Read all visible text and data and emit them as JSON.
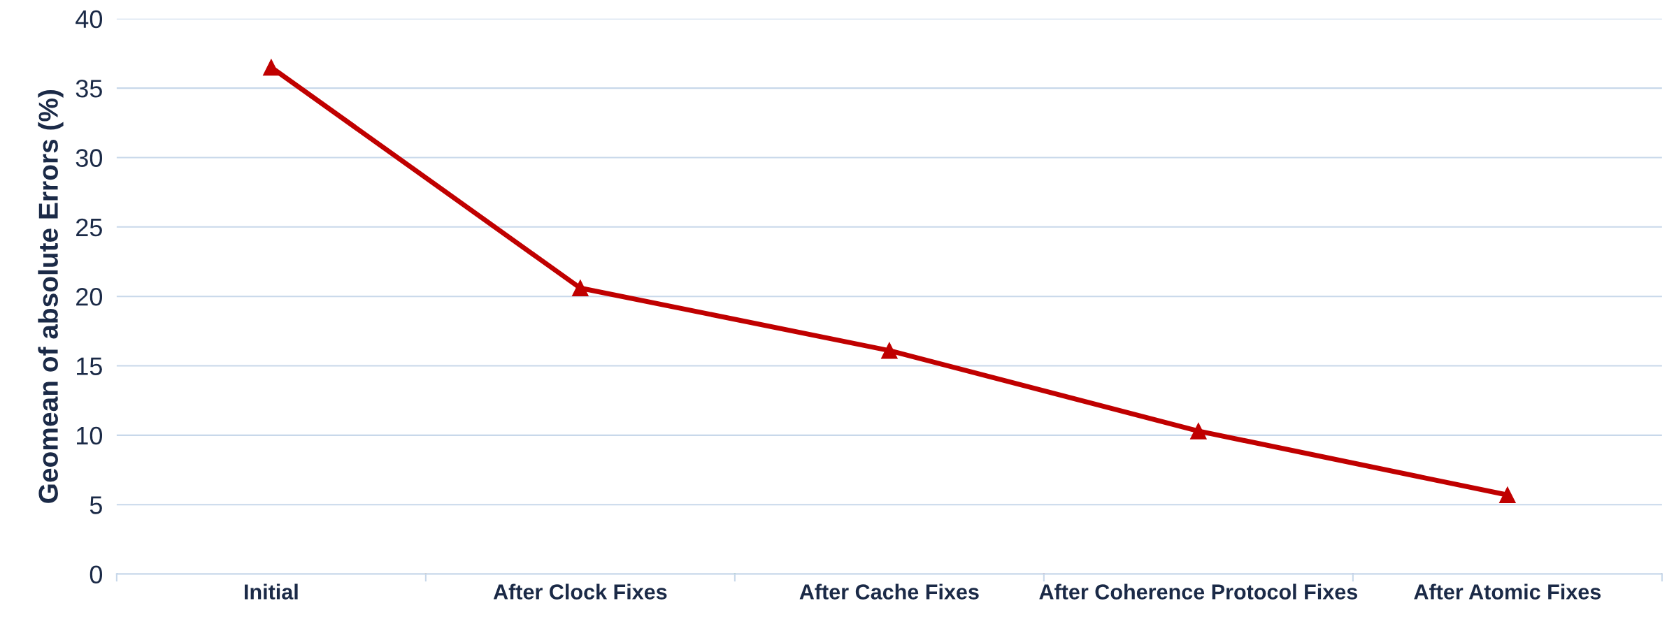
{
  "chart_data": {
    "type": "line",
    "ylabel": "Geomean of absolute Errors (%)",
    "categories": [
      "Initial",
      "After Clock Fixes",
      "After Cache Fixes",
      "After Coherence Protocol Fixes",
      "After Atomic Fixes"
    ],
    "series": [
      {
        "color": "#c00000",
        "values": [
          36.5,
          20.6,
          16.1,
          10.3,
          5.7
        ]
      }
    ],
    "ylim": [
      0,
      40
    ],
    "yticks": [
      0,
      5,
      10,
      15,
      20,
      25,
      30,
      35,
      40
    ],
    "grid": "y",
    "marker": "triangle",
    "line_style": "solid",
    "legend": false
  }
}
